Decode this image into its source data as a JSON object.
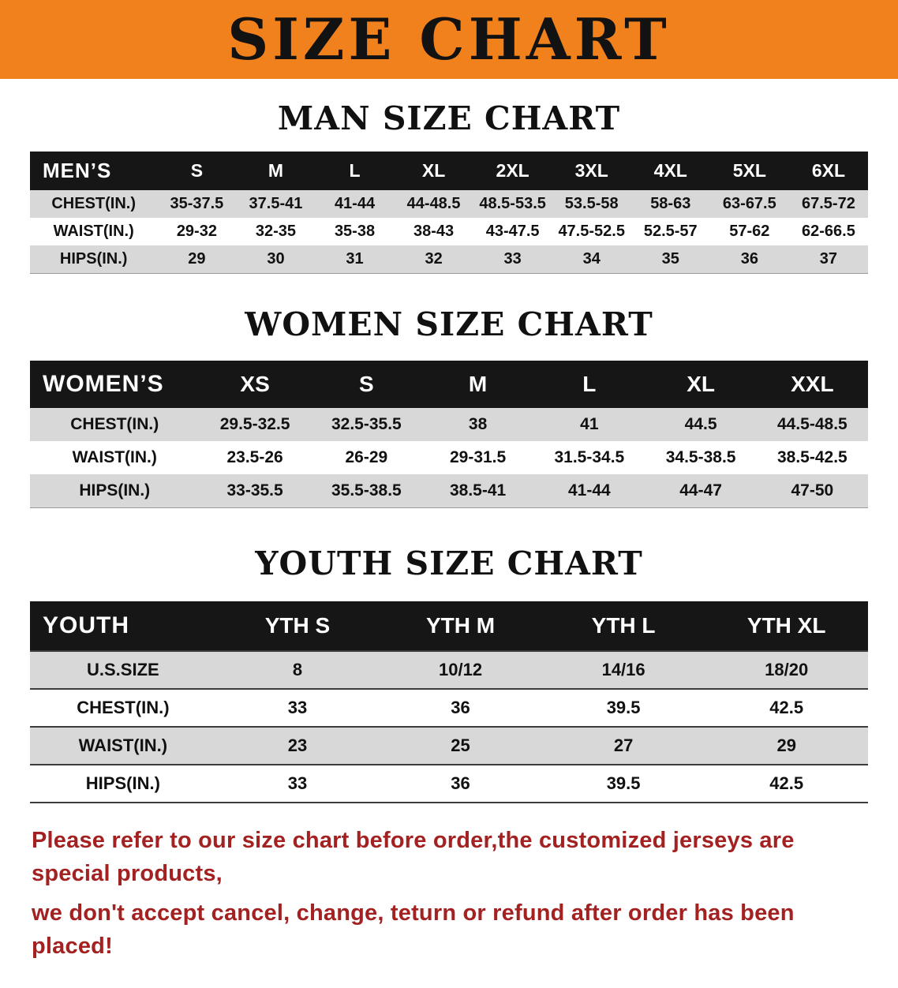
{
  "banner": {
    "title": "SIZE CHART"
  },
  "colors": {
    "banner_bg": "#f0811c",
    "table_header_bg": "#161616",
    "table_header_text": "#ffffff",
    "row_stripe": "#d8d8d8",
    "disclaimer_text": "#a32121"
  },
  "sections": [
    {
      "id": "mens",
      "heading": "MAN SIZE CHART",
      "header_label": "MEN’S",
      "columns": [
        "S",
        "M",
        "L",
        "XL",
        "2XL",
        "3XL",
        "4XL",
        "5XL",
        "6XL"
      ],
      "rows": [
        {
          "label": "CHEST(IN.)",
          "values": [
            "35-37.5",
            "37.5-41",
            "41-44",
            "44-48.5",
            "48.5-53.5",
            "53.5-58",
            "58-63",
            "63-67.5",
            "67.5-72"
          ]
        },
        {
          "label": "WAIST(IN.)",
          "values": [
            "29-32",
            "32-35",
            "35-38",
            "38-43",
            "43-47.5",
            "47.5-52.5",
            "52.5-57",
            "57-62",
            "62-66.5"
          ]
        },
        {
          "label": "HIPS(IN.)",
          "values": [
            "29",
            "30",
            "31",
            "32",
            "33",
            "34",
            "35",
            "36",
            "37"
          ]
        }
      ]
    },
    {
      "id": "womens",
      "heading": "WOMEN SIZE CHART",
      "header_label": "WOMEN’S",
      "columns": [
        "XS",
        "S",
        "M",
        "L",
        "XL",
        "XXL"
      ],
      "rows": [
        {
          "label": "CHEST(IN.)",
          "values": [
            "29.5-32.5",
            "32.5-35.5",
            "38",
            "41",
            "44.5",
            "44.5-48.5"
          ]
        },
        {
          "label": "WAIST(IN.)",
          "values": [
            "23.5-26",
            "26-29",
            "29-31.5",
            "31.5-34.5",
            "34.5-38.5",
            "38.5-42.5"
          ]
        },
        {
          "label": "HIPS(IN.)",
          "values": [
            "33-35.5",
            "35.5-38.5",
            "38.5-41",
            "41-44",
            "44-47",
            "47-50"
          ]
        }
      ]
    },
    {
      "id": "youth",
      "heading": "YOUTH SIZE CHART",
      "header_label": "YOUTH",
      "columns": [
        "YTH S",
        "YTH M",
        "YTH L",
        "YTH XL"
      ],
      "rows": [
        {
          "label": "U.S.SIZE",
          "values": [
            "8",
            "10/12",
            "14/16",
            "18/20"
          ]
        },
        {
          "label": "CHEST(IN.)",
          "values": [
            "33",
            "36",
            "39.5",
            "42.5"
          ]
        },
        {
          "label": "WAIST(IN.)",
          "values": [
            "23",
            "25",
            "27",
            "29"
          ]
        },
        {
          "label": "HIPS(IN.)",
          "values": [
            "33",
            "36",
            "39.5",
            "42.5"
          ]
        }
      ]
    }
  ],
  "footer": {
    "lines": [
      "Please refer to our size chart before order,the customized jerseys are special products,",
      "we don't accept cancel, change, teturn or refund after order has been placed!"
    ]
  }
}
